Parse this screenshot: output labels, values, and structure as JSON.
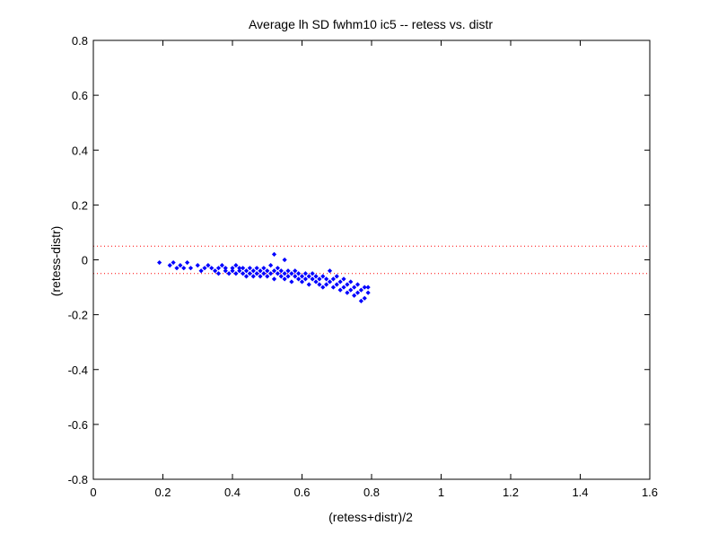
{
  "chart_data": {
    "type": "scatter",
    "title": "Average lh SD fwhm10 ic5 -- retess vs. distr",
    "xlabel": "(retess+distr)/2",
    "ylabel": "(retess-distr)",
    "xlim": [
      0,
      1.6
    ],
    "ylim": [
      -0.8,
      0.8
    ],
    "xticks": [
      0,
      0.2,
      0.4,
      0.6,
      0.8,
      1,
      1.2,
      1.4,
      1.6
    ],
    "xtick_labels": [
      "0",
      "0.2",
      "0.4",
      "0.6",
      "0.8",
      "1",
      "1.2",
      "1.4",
      "1.6"
    ],
    "yticks": [
      -0.8,
      -0.6,
      -0.4,
      -0.2,
      0,
      0.2,
      0.4,
      0.6,
      0.8
    ],
    "ytick_labels": [
      "-0.8",
      "-0.6",
      "-0.4",
      "-0.2",
      "0",
      "0.2",
      "0.4",
      "0.6",
      "0.8"
    ],
    "grid": false,
    "reference_lines": [
      {
        "y": 0.05,
        "style": "dotted",
        "color": "#ff0000"
      },
      {
        "y": -0.05,
        "style": "dotted",
        "color": "#ff0000"
      }
    ],
    "series_color": "#0000ff",
    "series": [
      {
        "marker": "diamond",
        "points": [
          [
            0.19,
            -0.01
          ],
          [
            0.22,
            -0.02
          ],
          [
            0.23,
            -0.01
          ],
          [
            0.24,
            -0.03
          ],
          [
            0.25,
            -0.02
          ],
          [
            0.26,
            -0.03
          ],
          [
            0.27,
            -0.01
          ],
          [
            0.28,
            -0.03
          ],
          [
            0.3,
            -0.02
          ],
          [
            0.31,
            -0.04
          ],
          [
            0.32,
            -0.03
          ],
          [
            0.33,
            -0.02
          ],
          [
            0.34,
            -0.03
          ],
          [
            0.35,
            -0.04
          ],
          [
            0.36,
            -0.03
          ],
          [
            0.36,
            -0.05
          ],
          [
            0.37,
            -0.02
          ],
          [
            0.38,
            -0.04
          ],
          [
            0.38,
            -0.03
          ],
          [
            0.39,
            -0.05
          ],
          [
            0.4,
            -0.03
          ],
          [
            0.4,
            -0.04
          ],
          [
            0.41,
            -0.02
          ],
          [
            0.41,
            -0.05
          ],
          [
            0.42,
            -0.03
          ],
          [
            0.42,
            -0.04
          ],
          [
            0.43,
            -0.05
          ],
          [
            0.43,
            -0.03
          ],
          [
            0.44,
            -0.04
          ],
          [
            0.44,
            -0.06
          ],
          [
            0.45,
            -0.03
          ],
          [
            0.45,
            -0.05
          ],
          [
            0.46,
            -0.04
          ],
          [
            0.46,
            -0.06
          ],
          [
            0.47,
            -0.03
          ],
          [
            0.47,
            -0.05
          ],
          [
            0.48,
            -0.04
          ],
          [
            0.48,
            -0.06
          ],
          [
            0.49,
            -0.03
          ],
          [
            0.49,
            -0.05
          ],
          [
            0.5,
            -0.04
          ],
          [
            0.5,
            -0.06
          ],
          [
            0.51,
            -0.02
          ],
          [
            0.51,
            -0.05
          ],
          [
            0.52,
            -0.04
          ],
          [
            0.52,
            -0.07
          ],
          [
            0.52,
            0.02
          ],
          [
            0.53,
            -0.05
          ],
          [
            0.53,
            -0.03
          ],
          [
            0.54,
            -0.06
          ],
          [
            0.54,
            -0.04
          ],
          [
            0.55,
            -0.07
          ],
          [
            0.55,
            -0.05
          ],
          [
            0.55,
            0.0
          ],
          [
            0.56,
            -0.04
          ],
          [
            0.56,
            -0.06
          ],
          [
            0.57,
            -0.05
          ],
          [
            0.57,
            -0.08
          ],
          [
            0.58,
            -0.04
          ],
          [
            0.58,
            -0.06
          ],
          [
            0.59,
            -0.07
          ],
          [
            0.59,
            -0.05
          ],
          [
            0.6,
            -0.06
          ],
          [
            0.6,
            -0.08
          ],
          [
            0.61,
            -0.05
          ],
          [
            0.61,
            -0.07
          ],
          [
            0.62,
            -0.06
          ],
          [
            0.62,
            -0.09
          ],
          [
            0.63,
            -0.07
          ],
          [
            0.63,
            -0.05
          ],
          [
            0.64,
            -0.08
          ],
          [
            0.64,
            -0.06
          ],
          [
            0.65,
            -0.07
          ],
          [
            0.65,
            -0.09
          ],
          [
            0.66,
            -0.06
          ],
          [
            0.66,
            -0.1
          ],
          [
            0.67,
            -0.07
          ],
          [
            0.67,
            -0.09
          ],
          [
            0.68,
            -0.08
          ],
          [
            0.68,
            -0.04
          ],
          [
            0.69,
            -0.1
          ],
          [
            0.69,
            -0.07
          ],
          [
            0.7,
            -0.09
          ],
          [
            0.7,
            -0.06
          ],
          [
            0.71,
            -0.11
          ],
          [
            0.71,
            -0.08
          ],
          [
            0.72,
            -0.1
          ],
          [
            0.72,
            -0.07
          ],
          [
            0.73,
            -0.09
          ],
          [
            0.73,
            -0.12
          ],
          [
            0.74,
            -0.08
          ],
          [
            0.74,
            -0.11
          ],
          [
            0.75,
            -0.1
          ],
          [
            0.75,
            -0.13
          ],
          [
            0.76,
            -0.09
          ],
          [
            0.76,
            -0.12
          ],
          [
            0.77,
            -0.11
          ],
          [
            0.77,
            -0.15
          ],
          [
            0.78,
            -0.1
          ],
          [
            0.78,
            -0.14
          ],
          [
            0.79,
            -0.12
          ],
          [
            0.79,
            -0.1
          ]
        ]
      }
    ]
  }
}
